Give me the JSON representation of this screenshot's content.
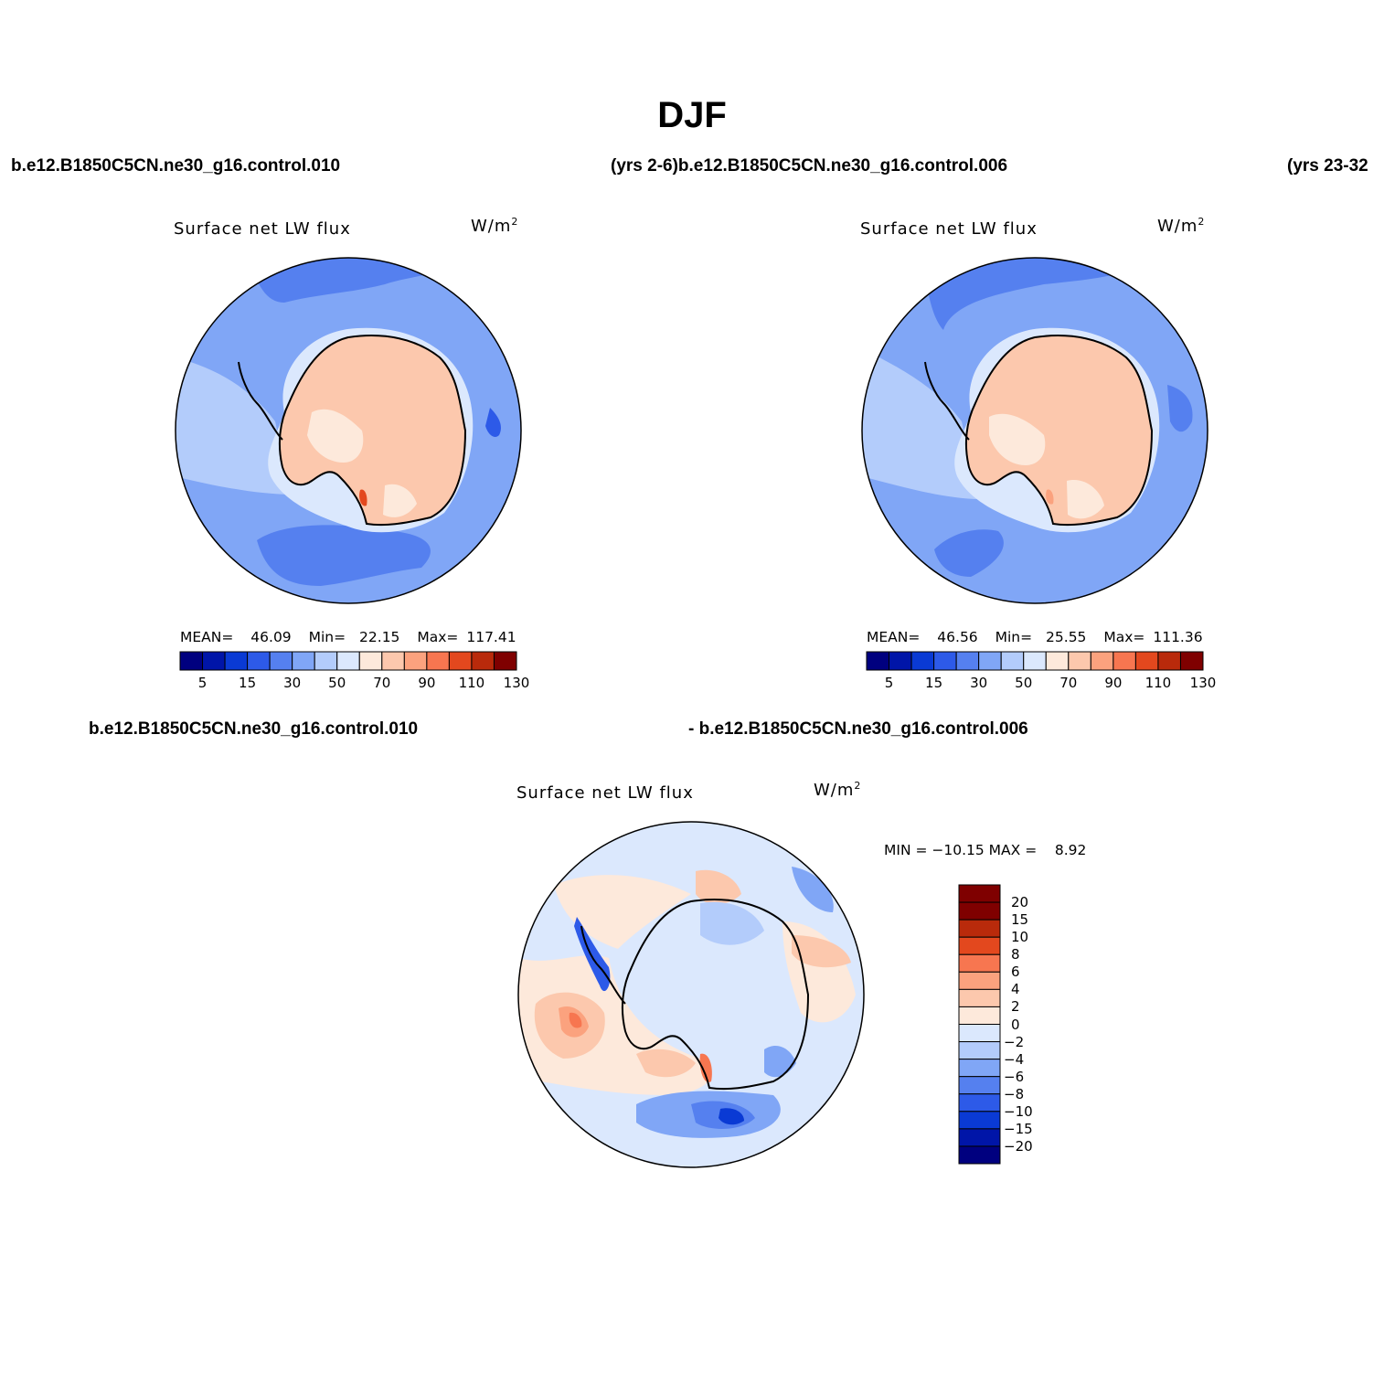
{
  "title": "DJF",
  "top_labels": {
    "left_case": "b.e12.B1850C5CN.ne30_g16.control.010",
    "middle": "(yrs 2-6)b.e12.B1850C5CN.ne30_g16.control.006",
    "right": "(yrs 23-32"
  },
  "diff_labels": {
    "case_a": "b.e12.B1850C5CN.ne30_g16.control.010",
    "case_b": "- b.e12.B1850C5CN.ne30_g16.control.006"
  },
  "panels": [
    {
      "title": "Surface net LW flux",
      "units": "W/m",
      "units_exp": "2",
      "mean_label": "MEAN=",
      "mean": "46.09",
      "min_label": "Min=",
      "min": "22.15",
      "max_label": "Max=",
      "max": "117.41"
    },
    {
      "title": "Surface net LW flux",
      "units": "W/m",
      "units_exp": "2",
      "mean_label": "MEAN=",
      "mean": "46.56",
      "min_label": "Min=",
      "min": "25.55",
      "max_label": "Max=",
      "max": "111.36"
    }
  ],
  "diff_panel": {
    "title": "Surface net LW flux",
    "units": "W/m",
    "units_exp": "2",
    "minmax": "MIN = −10.15 MAX =    8.92"
  },
  "colorbar_main": {
    "colors": [
      "#00007f",
      "#0015a8",
      "#0a3ad4",
      "#2d5ae8",
      "#5580ef",
      "#80a6f6",
      "#b3ccfb",
      "#dbe8fd",
      "#fde9db",
      "#fcc8ad",
      "#fba27e",
      "#f77650",
      "#e3481e",
      "#b92a0b",
      "#7f0000"
    ],
    "tick_labels": [
      "5",
      "15",
      "30",
      "50",
      "70",
      "90",
      "110",
      "130"
    ]
  },
  "colorbar_diff": {
    "colors": [
      "#7f0000",
      "#b92a0b",
      "#e3481e",
      "#f77650",
      "#fba27e",
      "#fcc8ad",
      "#fde9db",
      "#dbe8fd",
      "#b3ccfb",
      "#80a6f6",
      "#5580ef",
      "#2d5ae8",
      "#0a3ad4",
      "#0015a8",
      "#00007f"
    ],
    "tick_labels": [
      "20",
      "15",
      "10",
      "8",
      "6",
      "4",
      "2",
      "0",
      "−2",
      "−4",
      "−6",
      "−8",
      "−10",
      "−15",
      "−20"
    ]
  },
  "map_colors": {
    "ocean_light": "#b3ccfb",
    "ocean": "#80a6f6",
    "ocean_deep": "#5580ef",
    "ocean_deeper": "#2d5ae8",
    "shelf": "#dbe8fd",
    "land": "#fcc8ad",
    "land_pale": "#fde9db",
    "land_hot": "#e3481e",
    "diff_zero_neg": "#dbe8fd",
    "diff_zero_pos": "#fde9db"
  }
}
